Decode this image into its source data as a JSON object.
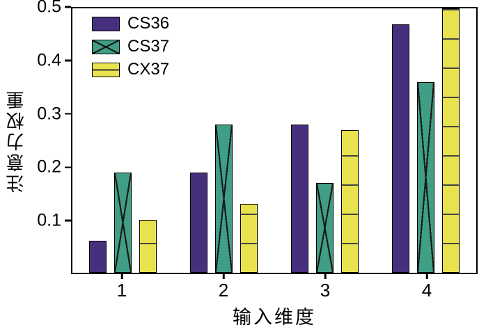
{
  "chart_data": {
    "type": "bar",
    "title": "",
    "xlabel": "输入维度",
    "ylabel": "注意力权重",
    "categories": [
      "1",
      "2",
      "3",
      "4"
    ],
    "series": [
      {
        "name": "CS36",
        "color": "#46307d",
        "pattern": "solid",
        "values": [
          0.06,
          0.19,
          0.28,
          0.47
        ]
      },
      {
        "name": "CS37",
        "color": "#3f9e85",
        "pattern": "cross",
        "values": [
          0.19,
          0.28,
          0.17,
          0.36
        ]
      },
      {
        "name": "CX37",
        "color": "#e8e24e",
        "pattern": "hlines",
        "values": [
          0.1,
          0.13,
          0.27,
          0.5
        ]
      }
    ],
    "ylim": [
      0,
      0.5
    ],
    "yticks": [
      0.1,
      0.2,
      0.3,
      0.4,
      0.5
    ],
    "legend_position": "top-left",
    "grid": false,
    "axis_color": "#000000"
  }
}
